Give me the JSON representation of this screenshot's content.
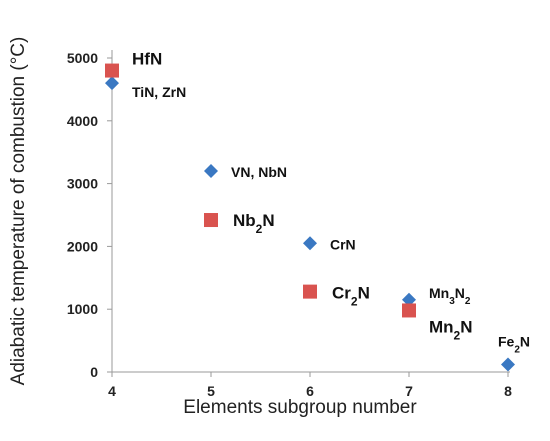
{
  "chart_data": {
    "type": "scatter",
    "title": "",
    "xlabel": "Elements subgroup number",
    "ylabel": "Adiabatic temperature of combustion (°C)",
    "xlim": [
      4,
      8
    ],
    "ylim": [
      0,
      5000
    ],
    "x_ticks": [
      "4",
      "5",
      "6",
      "7",
      "8"
    ],
    "y_ticks": [
      "0",
      "1000",
      "2000",
      "3000",
      "4000",
      "5000"
    ],
    "grid": false,
    "legend": "none",
    "series": [
      {
        "marker": "diamond",
        "color": "#3a78c2",
        "points": [
          {
            "x": 4,
            "y": 4600,
            "label": "TiN, ZrN"
          },
          {
            "x": 5,
            "y": 3200,
            "label": "VN, NbN"
          },
          {
            "x": 6,
            "y": 2050,
            "label": "CrN"
          },
          {
            "x": 7,
            "y": 1150,
            "label": "Mn3N2"
          },
          {
            "x": 8,
            "y": 120,
            "label": "Fe2N"
          }
        ]
      },
      {
        "marker": "square",
        "color": "#d9534f",
        "points": [
          {
            "x": 4,
            "y": 4800,
            "label": "HfN"
          },
          {
            "x": 5,
            "y": 2420,
            "label": "Nb2N"
          },
          {
            "x": 6,
            "y": 1280,
            "label": "Cr2N"
          },
          {
            "x": 7,
            "y": 980,
            "label": "Mn2N"
          }
        ]
      }
    ]
  }
}
